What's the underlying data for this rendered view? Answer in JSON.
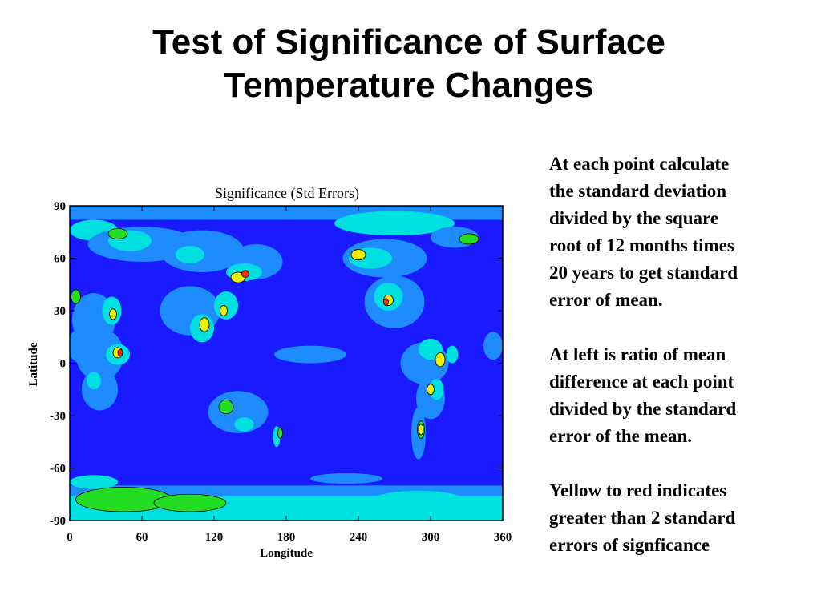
{
  "slide": {
    "title_lines": [
      "Test of Significance of Surface",
      "Temperature Changes"
    ],
    "paragraphs": [
      [
        "At each point calculate",
        "the standard deviation",
        "divided by the square",
        "root of 12 months times",
        "20 years to get standard",
        "error of mean."
      ],
      [
        "At left is ratio of mean",
        "difference at each point",
        "divided by the standard",
        "error of the mean."
      ],
      [
        "Yellow to red indicates",
        "greater than 2 standard",
        "errors of signficance"
      ]
    ]
  },
  "chart_data": {
    "type": "heatmap",
    "title": "Significance (Std Errors)",
    "xlabel": "Longitude",
    "ylabel": "Latitude",
    "xlim": [
      0,
      360
    ],
    "ylim": [
      -90,
      90
    ],
    "x_ticks": [
      "0",
      "60",
      "120",
      "180",
      "240",
      "300",
      "360"
    ],
    "y_ticks": [
      "90",
      "60",
      "30",
      "0",
      "-30",
      "-60",
      "-90"
    ],
    "background_level_color": "#1a1aff",
    "level_colors": [
      "#1a1aff",
      "#1e8cff",
      "#00e0e0",
      "#22dd22",
      "#eeee00",
      "#ff2a00"
    ],
    "features": [
      {
        "kind": "band",
        "lat": [
          -90,
          -74
        ],
        "level": 2
      },
      {
        "kind": "band",
        "lat": [
          -76,
          -70
        ],
        "level": 1
      },
      {
        "kind": "band",
        "lat": [
          82,
          90
        ],
        "level": 1
      },
      {
        "kind": "blob",
        "lon": 45,
        "lat": -78,
        "rx": 40,
        "ry": 7,
        "level": 3
      },
      {
        "kind": "blob",
        "lon": 100,
        "lat": -80,
        "rx": 30,
        "ry": 5,
        "level": 3
      },
      {
        "kind": "blob",
        "lon": 290,
        "lat": -79,
        "rx": 40,
        "ry": 6,
        "level": 2
      },
      {
        "kind": "blob",
        "lon": 20,
        "lat": -68,
        "rx": 20,
        "ry": 4,
        "level": 2
      },
      {
        "kind": "blob",
        "lon": 230,
        "lat": -66,
        "rx": 30,
        "ry": 3,
        "level": 1
      },
      {
        "kind": "blob",
        "lon": 270,
        "lat": 80,
        "rx": 50,
        "ry": 7,
        "level": 2
      },
      {
        "kind": "blob",
        "lon": 20,
        "lat": 76,
        "rx": 20,
        "ry": 6,
        "level": 2
      },
      {
        "kind": "blob",
        "lon": 60,
        "lat": 68,
        "rx": 45,
        "ry": 10,
        "level": 1
      },
      {
        "kind": "blob",
        "lon": 50,
        "lat": 70,
        "rx": 18,
        "ry": 6,
        "level": 2
      },
      {
        "kind": "blob",
        "lon": 40,
        "lat": 74,
        "rx": 8,
        "ry": 3,
        "level": 3
      },
      {
        "kind": "blob",
        "lon": 110,
        "lat": 64,
        "rx": 35,
        "ry": 12,
        "level": 1
      },
      {
        "kind": "blob",
        "lon": 100,
        "lat": 62,
        "rx": 12,
        "ry": 5,
        "level": 2
      },
      {
        "kind": "blob",
        "lon": 155,
        "lat": 58,
        "rx": 22,
        "ry": 10,
        "level": 1
      },
      {
        "kind": "blob",
        "lon": 145,
        "lat": 52,
        "rx": 15,
        "ry": 5,
        "level": 2
      },
      {
        "kind": "blob",
        "lon": 140,
        "lat": 49,
        "rx": 6,
        "ry": 3,
        "level": 4
      },
      {
        "kind": "blob",
        "lon": 146,
        "lat": 51,
        "rx": 3,
        "ry": 2,
        "level": 5
      },
      {
        "kind": "blob",
        "lon": 262,
        "lat": 60,
        "rx": 35,
        "ry": 11,
        "level": 1
      },
      {
        "kind": "blob",
        "lon": 250,
        "lat": 60,
        "rx": 18,
        "ry": 6,
        "level": 2
      },
      {
        "kind": "blob",
        "lon": 240,
        "lat": 62,
        "rx": 6,
        "ry": 3,
        "level": 4
      },
      {
        "kind": "blob",
        "lon": 320,
        "lat": 72,
        "rx": 20,
        "ry": 6,
        "level": 1
      },
      {
        "kind": "blob",
        "lon": 332,
        "lat": 71,
        "rx": 8,
        "ry": 3,
        "level": 3
      },
      {
        "kind": "blob",
        "lon": 100,
        "lat": 30,
        "rx": 25,
        "ry": 14,
        "level": 1
      },
      {
        "kind": "blob",
        "lon": 110,
        "lat": 20,
        "rx": 10,
        "ry": 8,
        "level": 2
      },
      {
        "kind": "blob",
        "lon": 112,
        "lat": 22,
        "rx": 4,
        "ry": 4,
        "level": 4
      },
      {
        "kind": "blob",
        "lon": 130,
        "lat": 33,
        "rx": 10,
        "ry": 8,
        "level": 2
      },
      {
        "kind": "blob",
        "lon": 128,
        "lat": 30,
        "rx": 3,
        "ry": 3,
        "level": 4
      },
      {
        "kind": "blob",
        "lon": 270,
        "lat": 35,
        "rx": 25,
        "ry": 15,
        "level": 1
      },
      {
        "kind": "blob",
        "lon": 265,
        "lat": 38,
        "rx": 12,
        "ry": 8,
        "level": 2
      },
      {
        "kind": "blob",
        "lon": 265,
        "lat": 36,
        "rx": 4,
        "ry": 3,
        "level": 4
      },
      {
        "kind": "blob",
        "lon": 263,
        "lat": 35,
        "rx": 2,
        "ry": 2,
        "level": 5
      },
      {
        "kind": "blob",
        "lon": 20,
        "lat": 25,
        "rx": 18,
        "ry": 15,
        "level": 1
      },
      {
        "kind": "blob",
        "lon": 10,
        "lat": 10,
        "rx": 12,
        "ry": 10,
        "level": 1
      },
      {
        "kind": "blob",
        "lon": 35,
        "lat": 30,
        "rx": 8,
        "ry": 8,
        "level": 2
      },
      {
        "kind": "blob",
        "lon": 36,
        "lat": 28,
        "rx": 3,
        "ry": 3,
        "level": 4
      },
      {
        "kind": "blob",
        "lon": 25,
        "lat": 5,
        "rx": 20,
        "ry": 15,
        "level": 1
      },
      {
        "kind": "blob",
        "lon": 40,
        "lat": 5,
        "rx": 10,
        "ry": 6,
        "level": 2
      },
      {
        "kind": "blob",
        "lon": 40,
        "lat": 6,
        "rx": 4,
        "ry": 3,
        "level": 4
      },
      {
        "kind": "blob",
        "lon": 42,
        "lat": 6,
        "rx": 2,
        "ry": 2,
        "level": 5
      },
      {
        "kind": "blob",
        "lon": 25,
        "lat": -15,
        "rx": 15,
        "ry": 12,
        "level": 1
      },
      {
        "kind": "blob",
        "lon": 20,
        "lat": -10,
        "rx": 6,
        "ry": 5,
        "level": 2
      },
      {
        "kind": "blob",
        "lon": 5,
        "lat": 38,
        "rx": 4,
        "ry": 4,
        "level": 3
      },
      {
        "kind": "blob",
        "lon": 295,
        "lat": 0,
        "rx": 20,
        "ry": 12,
        "level": 1
      },
      {
        "kind": "blob",
        "lon": 300,
        "lat": 8,
        "rx": 10,
        "ry": 6,
        "level": 2
      },
      {
        "kind": "blob",
        "lon": 308,
        "lat": 2,
        "rx": 4,
        "ry": 4,
        "level": 4
      },
      {
        "kind": "blob",
        "lon": 300,
        "lat": -20,
        "rx": 12,
        "ry": 12,
        "level": 1
      },
      {
        "kind": "blob",
        "lon": 305,
        "lat": -15,
        "rx": 6,
        "ry": 6,
        "level": 2
      },
      {
        "kind": "blob",
        "lon": 300,
        "lat": -15,
        "rx": 3,
        "ry": 3,
        "level": 4
      },
      {
        "kind": "blob",
        "lon": 290,
        "lat": -40,
        "rx": 6,
        "ry": 15,
        "level": 1
      },
      {
        "kind": "blob",
        "lon": 292,
        "lat": -38,
        "rx": 3,
        "ry": 5,
        "level": 3
      },
      {
        "kind": "blob",
        "lon": 292,
        "lat": -38,
        "rx": 2,
        "ry": 3,
        "level": 4
      },
      {
        "kind": "blob",
        "lon": 318,
        "lat": 5,
        "rx": 5,
        "ry": 5,
        "level": 2
      },
      {
        "kind": "blob",
        "lon": 352,
        "lat": 10,
        "rx": 8,
        "ry": 8,
        "level": 1
      },
      {
        "kind": "blob",
        "lon": 140,
        "lat": -28,
        "rx": 25,
        "ry": 12,
        "level": 1
      },
      {
        "kind": "blob",
        "lon": 130,
        "lat": -25,
        "rx": 6,
        "ry": 4,
        "level": 3
      },
      {
        "kind": "blob",
        "lon": 145,
        "lat": -35,
        "rx": 8,
        "ry": 4,
        "level": 2
      },
      {
        "kind": "blob",
        "lon": 172,
        "lat": -42,
        "rx": 3,
        "ry": 6,
        "level": 2
      },
      {
        "kind": "blob",
        "lon": 175,
        "lat": -40,
        "rx": 2,
        "ry": 3,
        "level": 3
      },
      {
        "kind": "blob",
        "lon": 200,
        "lat": 5,
        "rx": 30,
        "ry": 5,
        "level": 1
      }
    ]
  }
}
